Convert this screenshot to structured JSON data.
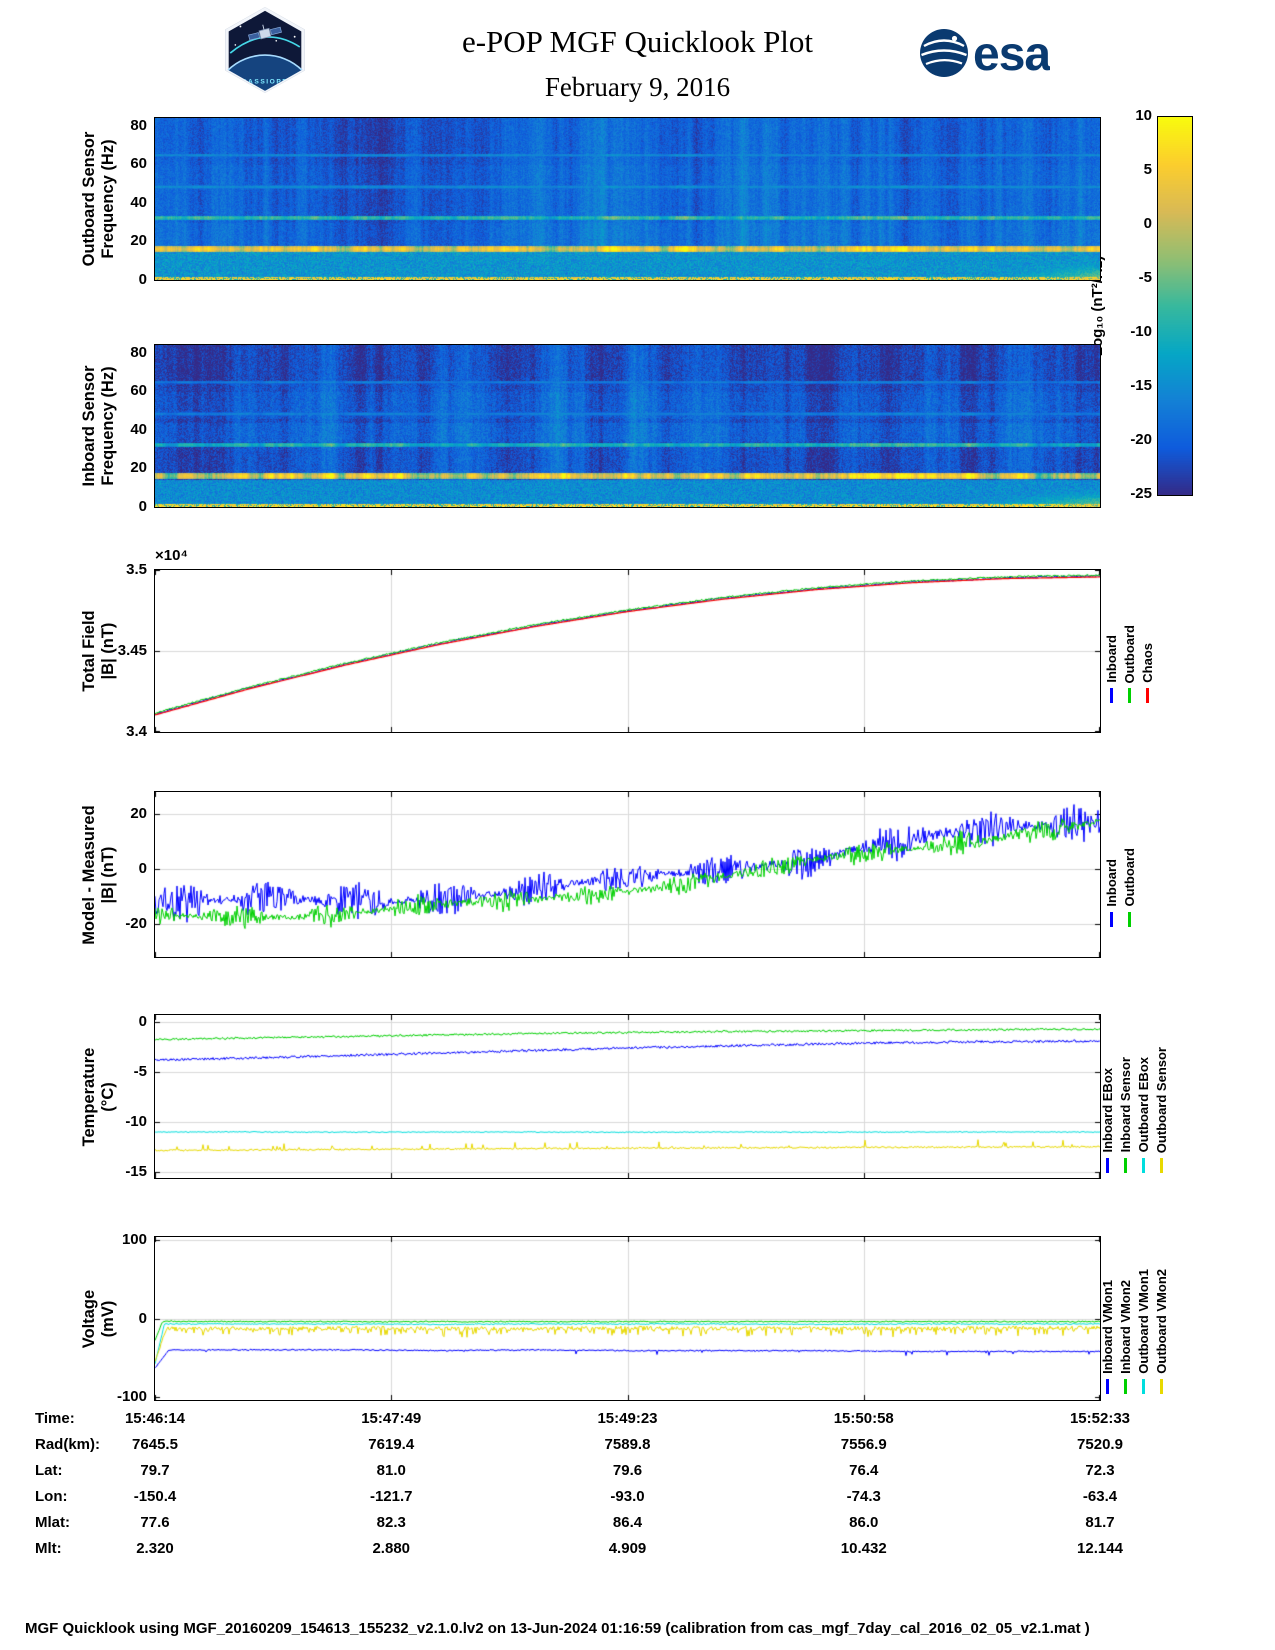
{
  "header": {
    "title": "e-POP MGF Quicklook Plot",
    "date": "February 9, 2016",
    "esa_text": "esa",
    "mission": "CASSIOPE"
  },
  "colorbar": {
    "label": "Log₁₀ (nT²/Hz)",
    "clim": [
      -25,
      10
    ],
    "colormap": "parula",
    "ticks": [
      {
        "v": 10,
        "label": "10"
      },
      {
        "v": 5,
        "label": "5"
      },
      {
        "v": 0,
        "label": "0"
      },
      {
        "v": -5,
        "label": "-5"
      },
      {
        "v": -10,
        "label": "-10"
      },
      {
        "v": -15,
        "label": "-15"
      },
      {
        "v": -20,
        "label": "-20"
      },
      {
        "v": -25,
        "label": "-25"
      }
    ]
  },
  "time_axis": {
    "tick_labels": [
      "15:46:14",
      "15:47:49",
      "15:49:23",
      "15:50:58",
      "15:52:33"
    ]
  },
  "table": {
    "rows": [
      {
        "label": "Time:",
        "values": [
          "15:46:14",
          "15:47:49",
          "15:49:23",
          "15:50:58",
          "15:52:33"
        ]
      },
      {
        "label": "Rad(km):",
        "values": [
          "7645.5",
          "7619.4",
          "7589.8",
          "7556.9",
          "7520.9"
        ]
      },
      {
        "label": "Lat:",
        "values": [
          "79.7",
          "81.0",
          "79.6",
          "76.4",
          "72.3"
        ]
      },
      {
        "label": "Lon:",
        "values": [
          "-150.4",
          "-121.7",
          "-93.0",
          "-74.3",
          "-63.4"
        ]
      },
      {
        "label": "Mlat:",
        "values": [
          "77.6",
          "82.3",
          "86.4",
          "86.0",
          "81.7"
        ]
      },
      {
        "label": "Mlt:",
        "values": [
          "2.320",
          "2.880",
          "4.909",
          "10.432",
          "12.144"
        ]
      }
    ]
  },
  "footer": {
    "text": "MGF Quicklook using MGF_20160209_154613_155232_v2.1.0.lv2 on 13-Jun-2024 01:16:59 (calibration from cas_mgf_7day_cal_2016_02_05_v2.1.mat )"
  },
  "chart_data": [
    {
      "id": "outboard-spectrogram",
      "type": "heatmap",
      "ylabel": [
        "Outboard Sensor",
        "Frequency (Hz)"
      ],
      "ylim": [
        0,
        84
      ],
      "ytick_vals": [
        0,
        20,
        40,
        60,
        80
      ],
      "ytick_labels": [
        "0",
        "20",
        "40",
        "60",
        "80"
      ],
      "xlim": [
        "15:46:14",
        "15:52:33"
      ],
      "clim": [
        -25,
        10
      ],
      "colormap": "parula",
      "units": "Log10 (nT^2/Hz)",
      "seed": 11,
      "base_level": -19,
      "noise": 2.0,
      "hbands": [
        {
          "fmin": 18,
          "fmax": 30,
          "dlevel": 0.8
        },
        {
          "fmin": 60,
          "fmax": 84,
          "dlevel": -0.7
        }
      ],
      "features": {
        "lines": [
          {
            "freq": 32.5,
            "halfwidth": 1.2,
            "level": -7,
            "wobble": 1.5
          },
          {
            "freq": 16.3,
            "halfwidth": 1.6,
            "level": 4.5,
            "wobble": 2.5
          },
          {
            "freq": 48.5,
            "halfwidth": 0.8,
            "level": -13.5,
            "wobble": 0.5
          },
          {
            "freq": 65.0,
            "halfwidth": 0.8,
            "level": -14.0,
            "wobble": 0.5
          }
        ],
        "low_band": {
          "fmin": 1.5,
          "fmax": 15,
          "level": -14,
          "speckle": 3.5
        },
        "bottom_edge": {
          "fmax": 1.6,
          "level": 5
        },
        "right_corner": {
          "tmin": 0.86,
          "fmax": 11,
          "level": -2
        }
      }
    },
    {
      "id": "inboard-spectrogram",
      "type": "heatmap",
      "ylabel": [
        "Inboard Sensor",
        "Frequency (Hz)"
      ],
      "ylim": [
        0,
        84
      ],
      "ytick_vals": [
        0,
        20,
        40,
        60,
        80
      ],
      "ytick_labels": [
        "0",
        "20",
        "40",
        "60",
        "80"
      ],
      "xlim": [
        "15:46:14",
        "15:52:33"
      ],
      "clim": [
        -25,
        10
      ],
      "colormap": "parula",
      "units": "Log10 (nT^2/Hz)",
      "seed": 77,
      "base_level": -21.5,
      "noise": 2.4,
      "hbands": [
        {
          "fmin": 34,
          "fmax": 44,
          "dlevel": 1.6
        },
        {
          "fmin": 46,
          "fmax": 60,
          "dlevel": 1.0
        },
        {
          "fmin": 64,
          "fmax": 84,
          "dlevel": -1.0
        }
      ],
      "features": {
        "lines": [
          {
            "freq": 32.5,
            "halfwidth": 1.2,
            "level": -8.5,
            "wobble": 1.5
          },
          {
            "freq": 16.3,
            "halfwidth": 1.6,
            "level": 4.0,
            "wobble": 3.0
          },
          {
            "freq": 48.5,
            "halfwidth": 0.8,
            "level": -15.0,
            "wobble": 0.5
          },
          {
            "freq": 65.0,
            "halfwidth": 0.8,
            "level": -15.5,
            "wobble": 0.5
          }
        ],
        "low_band": {
          "fmin": 1.5,
          "fmax": 14,
          "level": -15,
          "speckle": 3.5
        },
        "bottom_edge": {
          "fmax": 1.6,
          "level": 5.5
        },
        "right_corner": {
          "tmin": 0.8,
          "fmax": 12,
          "level": -2.5
        }
      }
    },
    {
      "id": "total-field",
      "type": "line",
      "ylabel": [
        "Total Field",
        "|B| (nT)"
      ],
      "ylim": [
        34000,
        35000
      ],
      "ytick_vals": [
        34000,
        34500,
        35000
      ],
      "ytick_labels": [
        "3.4",
        "3.45",
        "3.5"
      ],
      "multiplier": "×10⁴",
      "xlim": [
        "15:46:14",
        "15:52:33"
      ],
      "seed": 3,
      "series": [
        {
          "name": "Inboard",
          "color": "#0000ff",
          "noise": 6,
          "values": [
            34110,
            34272,
            34416,
            34544,
            34654,
            34748,
            34824,
            34884,
            34926,
            34952,
            34962
          ]
        },
        {
          "name": "Outboard",
          "color": "#00d000",
          "noise": 5,
          "offset": 6,
          "values": [
            34110,
            34272,
            34416,
            34544,
            34654,
            34748,
            34824,
            34884,
            34926,
            34952,
            34962
          ]
        },
        {
          "name": "Chaos",
          "color": "#ff0000",
          "noise": 0,
          "offset": -5,
          "width": 1.2,
          "values": [
            34110,
            34272,
            34416,
            34544,
            34654,
            34748,
            34824,
            34884,
            34926,
            34952,
            34962
          ]
        }
      ],
      "legend": [
        {
          "label": "Inboard",
          "color": "#0000ff"
        },
        {
          "label": "Outboard",
          "color": "#00d000"
        },
        {
          "label": "Chaos",
          "color": "#ff0000"
        }
      ]
    },
    {
      "id": "model-minus-measured",
      "type": "line",
      "ylabel": [
        "Model - Measured",
        "|B| (nT)"
      ],
      "ylim": [
        -32,
        28
      ],
      "ytick_vals": [
        -20,
        0,
        20
      ],
      "ytick_labels": [
        "-20",
        "0",
        "20"
      ],
      "xlim": [
        "15:46:14",
        "15:52:33"
      ],
      "seed": 4,
      "series": [
        {
          "name": "Inboard",
          "color": "#0000ff",
          "noise": 1.2,
          "band_amp": [
            7.5,
            5.5,
            7
          ],
          "values": [
            -13,
            -12.5,
            -11.5,
            -10,
            -8,
            -4,
            0,
            5,
            10,
            15,
            18
          ]
        },
        {
          "name": "Outboard",
          "color": "#00d000",
          "noise": 1.0,
          "band_amp": [
            4,
            3.5,
            4.5
          ],
          "values": [
            -18,
            -17,
            -15.5,
            -14,
            -11.5,
            -7,
            -2.5,
            2.5,
            7.5,
            13,
            17
          ]
        }
      ],
      "legend": [
        {
          "label": "Inboard",
          "color": "#0000ff"
        },
        {
          "label": "Outboard",
          "color": "#00d000"
        }
      ]
    },
    {
      "id": "temperature",
      "type": "line",
      "ylabel": [
        "Temperature",
        "(°C)"
      ],
      "ylim": [
        -15.6,
        0.7
      ],
      "ytick_vals": [
        0,
        -5,
        -10,
        -15
      ],
      "ytick_labels": [
        "0",
        "-5",
        "-10",
        "-15"
      ],
      "xlim": [
        "15:46:14",
        "15:52:33"
      ],
      "seed": 5,
      "series": [
        {
          "name": "Inboard EBox",
          "color": "#0000ff",
          "noise": 0.12,
          "values": [
            -3.8,
            -3.6,
            -3.35,
            -3.1,
            -2.85,
            -2.6,
            -2.4,
            -2.2,
            -2.05,
            -1.95,
            -1.9
          ]
        },
        {
          "name": "Inboard Sensor",
          "color": "#00d000",
          "noise": 0.1,
          "values": [
            -1.75,
            -1.6,
            -1.45,
            -1.3,
            -1.15,
            -1.05,
            -0.95,
            -0.9,
            -0.82,
            -0.76,
            -0.7
          ]
        },
        {
          "name": "Outboard EBox",
          "color": "#00dede",
          "noise": 0.05,
          "values": [
            -11,
            -11,
            -11.02,
            -11,
            -11,
            -11.03,
            -11,
            -11.02,
            -11,
            -11,
            -11
          ]
        },
        {
          "name": "Outboard Sensor",
          "color": "#e8d900",
          "noise": 0.08,
          "spike_p": 0.05,
          "spike_amp": 0.7,
          "values": [
            -12.85,
            -12.8,
            -12.75,
            -12.7,
            -12.65,
            -12.62,
            -12.58,
            -12.55,
            -12.52,
            -12.5,
            -12.48
          ]
        }
      ],
      "legend": [
        {
          "label": "Inboard EBox",
          "color": "#0000ff"
        },
        {
          "label": "Inboard Sensor",
          "color": "#00d000"
        },
        {
          "label": "Outboard EBox",
          "color": "#00dede"
        },
        {
          "label": "Outboard Sensor",
          "color": "#e8d900"
        }
      ]
    },
    {
      "id": "voltage",
      "type": "line",
      "ylabel": [
        "Voltage",
        "(mV)"
      ],
      "ylim": [
        -104,
        104
      ],
      "ytick_vals": [
        100,
        0,
        -100
      ],
      "ytick_labels": [
        "100",
        "0",
        "-100"
      ],
      "xlim": [
        "15:46:14",
        "15:52:33"
      ],
      "seed": 6,
      "series": [
        {
          "name": "Inboard VMon1",
          "color": "#0000ff",
          "noise": 0.8,
          "spike_p": 0.02,
          "spike_amp": -5,
          "transient": {
            "y0": -63,
            "len": 0.015
          },
          "values": [
            -40,
            -40,
            -40,
            -41,
            -40,
            -41,
            -41,
            -41,
            -42,
            -42,
            -42
          ]
        },
        {
          "name": "Inboard VMon2",
          "color": "#00d000",
          "noise": 0.8,
          "transient": {
            "y0": -28,
            "len": 0.008
          },
          "values": [
            -3.5,
            -4,
            -4,
            -4,
            -4,
            -4,
            -4,
            -4,
            -4,
            -4,
            -4
          ]
        },
        {
          "name": "Outboard VMon1",
          "color": "#00dede",
          "noise": 0.7,
          "transient": {
            "y0": -58,
            "len": 0.01
          },
          "values": [
            -7,
            -7,
            -7,
            -7.5,
            -7,
            -7,
            -7,
            -7.5,
            -7,
            -7,
            -7
          ]
        },
        {
          "name": "Outboard VMon2",
          "color": "#e8d900",
          "noise": 2.5,
          "spike_p": 0.22,
          "spike_amp": -9,
          "transient": {
            "y0": -55,
            "len": 0.012
          },
          "values": [
            -12,
            -13,
            -12,
            -13,
            -13,
            -12,
            -13,
            -12,
            -13,
            -12,
            -12
          ]
        }
      ],
      "legend": [
        {
          "label": "Inboard VMon1",
          "color": "#0000ff"
        },
        {
          "label": "Inboard VMon2",
          "color": "#00d000"
        },
        {
          "label": "Outboard VMon1",
          "color": "#00dede"
        },
        {
          "label": "Outboard VMon2",
          "color": "#e8d900"
        }
      ]
    }
  ]
}
